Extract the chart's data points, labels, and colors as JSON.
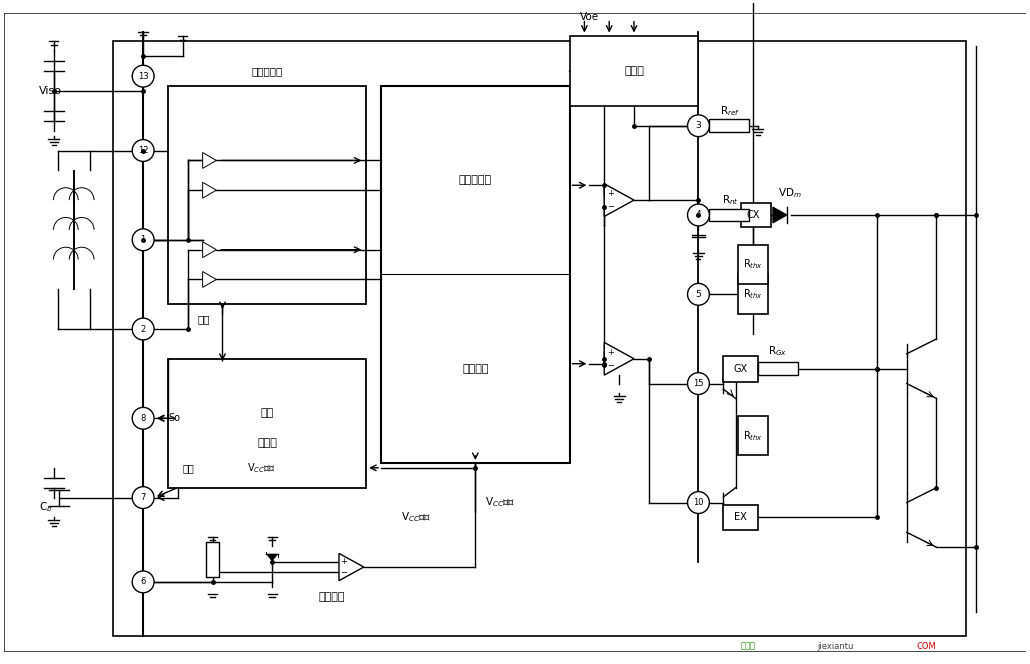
{
  "bg_color": "#ffffff",
  "line_color": "#000000",
  "fig_width": 10.3,
  "fig_height": 6.64,
  "dpi": 100,
  "labels": {
    "Viso": "Viso",
    "transformer_interface": "变压器接口",
    "pulse_trigger": "脉冲触发器",
    "pulse_logic": "脉冲逻辑",
    "fault": "故障",
    "fault_timer": "故障\n定时器",
    "So": "So",
    "reset": "复位",
    "Vcc_fault1": "Vₐₑ故障",
    "Vcc_fault2": "Vₐₑ故障",
    "Cb": "C$_b$",
    "power_monitor": "电源监视",
    "monitor": "监视器",
    "Voe": "Voe",
    "Rref": "R$_{ref}$",
    "Rnt": "R$_{nt}$",
    "CX": "CX",
    "VDm": "VD$_m$",
    "Rthx_top": "R$_{thx}$",
    "RGx": "R$_{Gx}$",
    "GX": "GX",
    "Rthx_bot": "R$_{thx}$",
    "EX": "EX"
  }
}
